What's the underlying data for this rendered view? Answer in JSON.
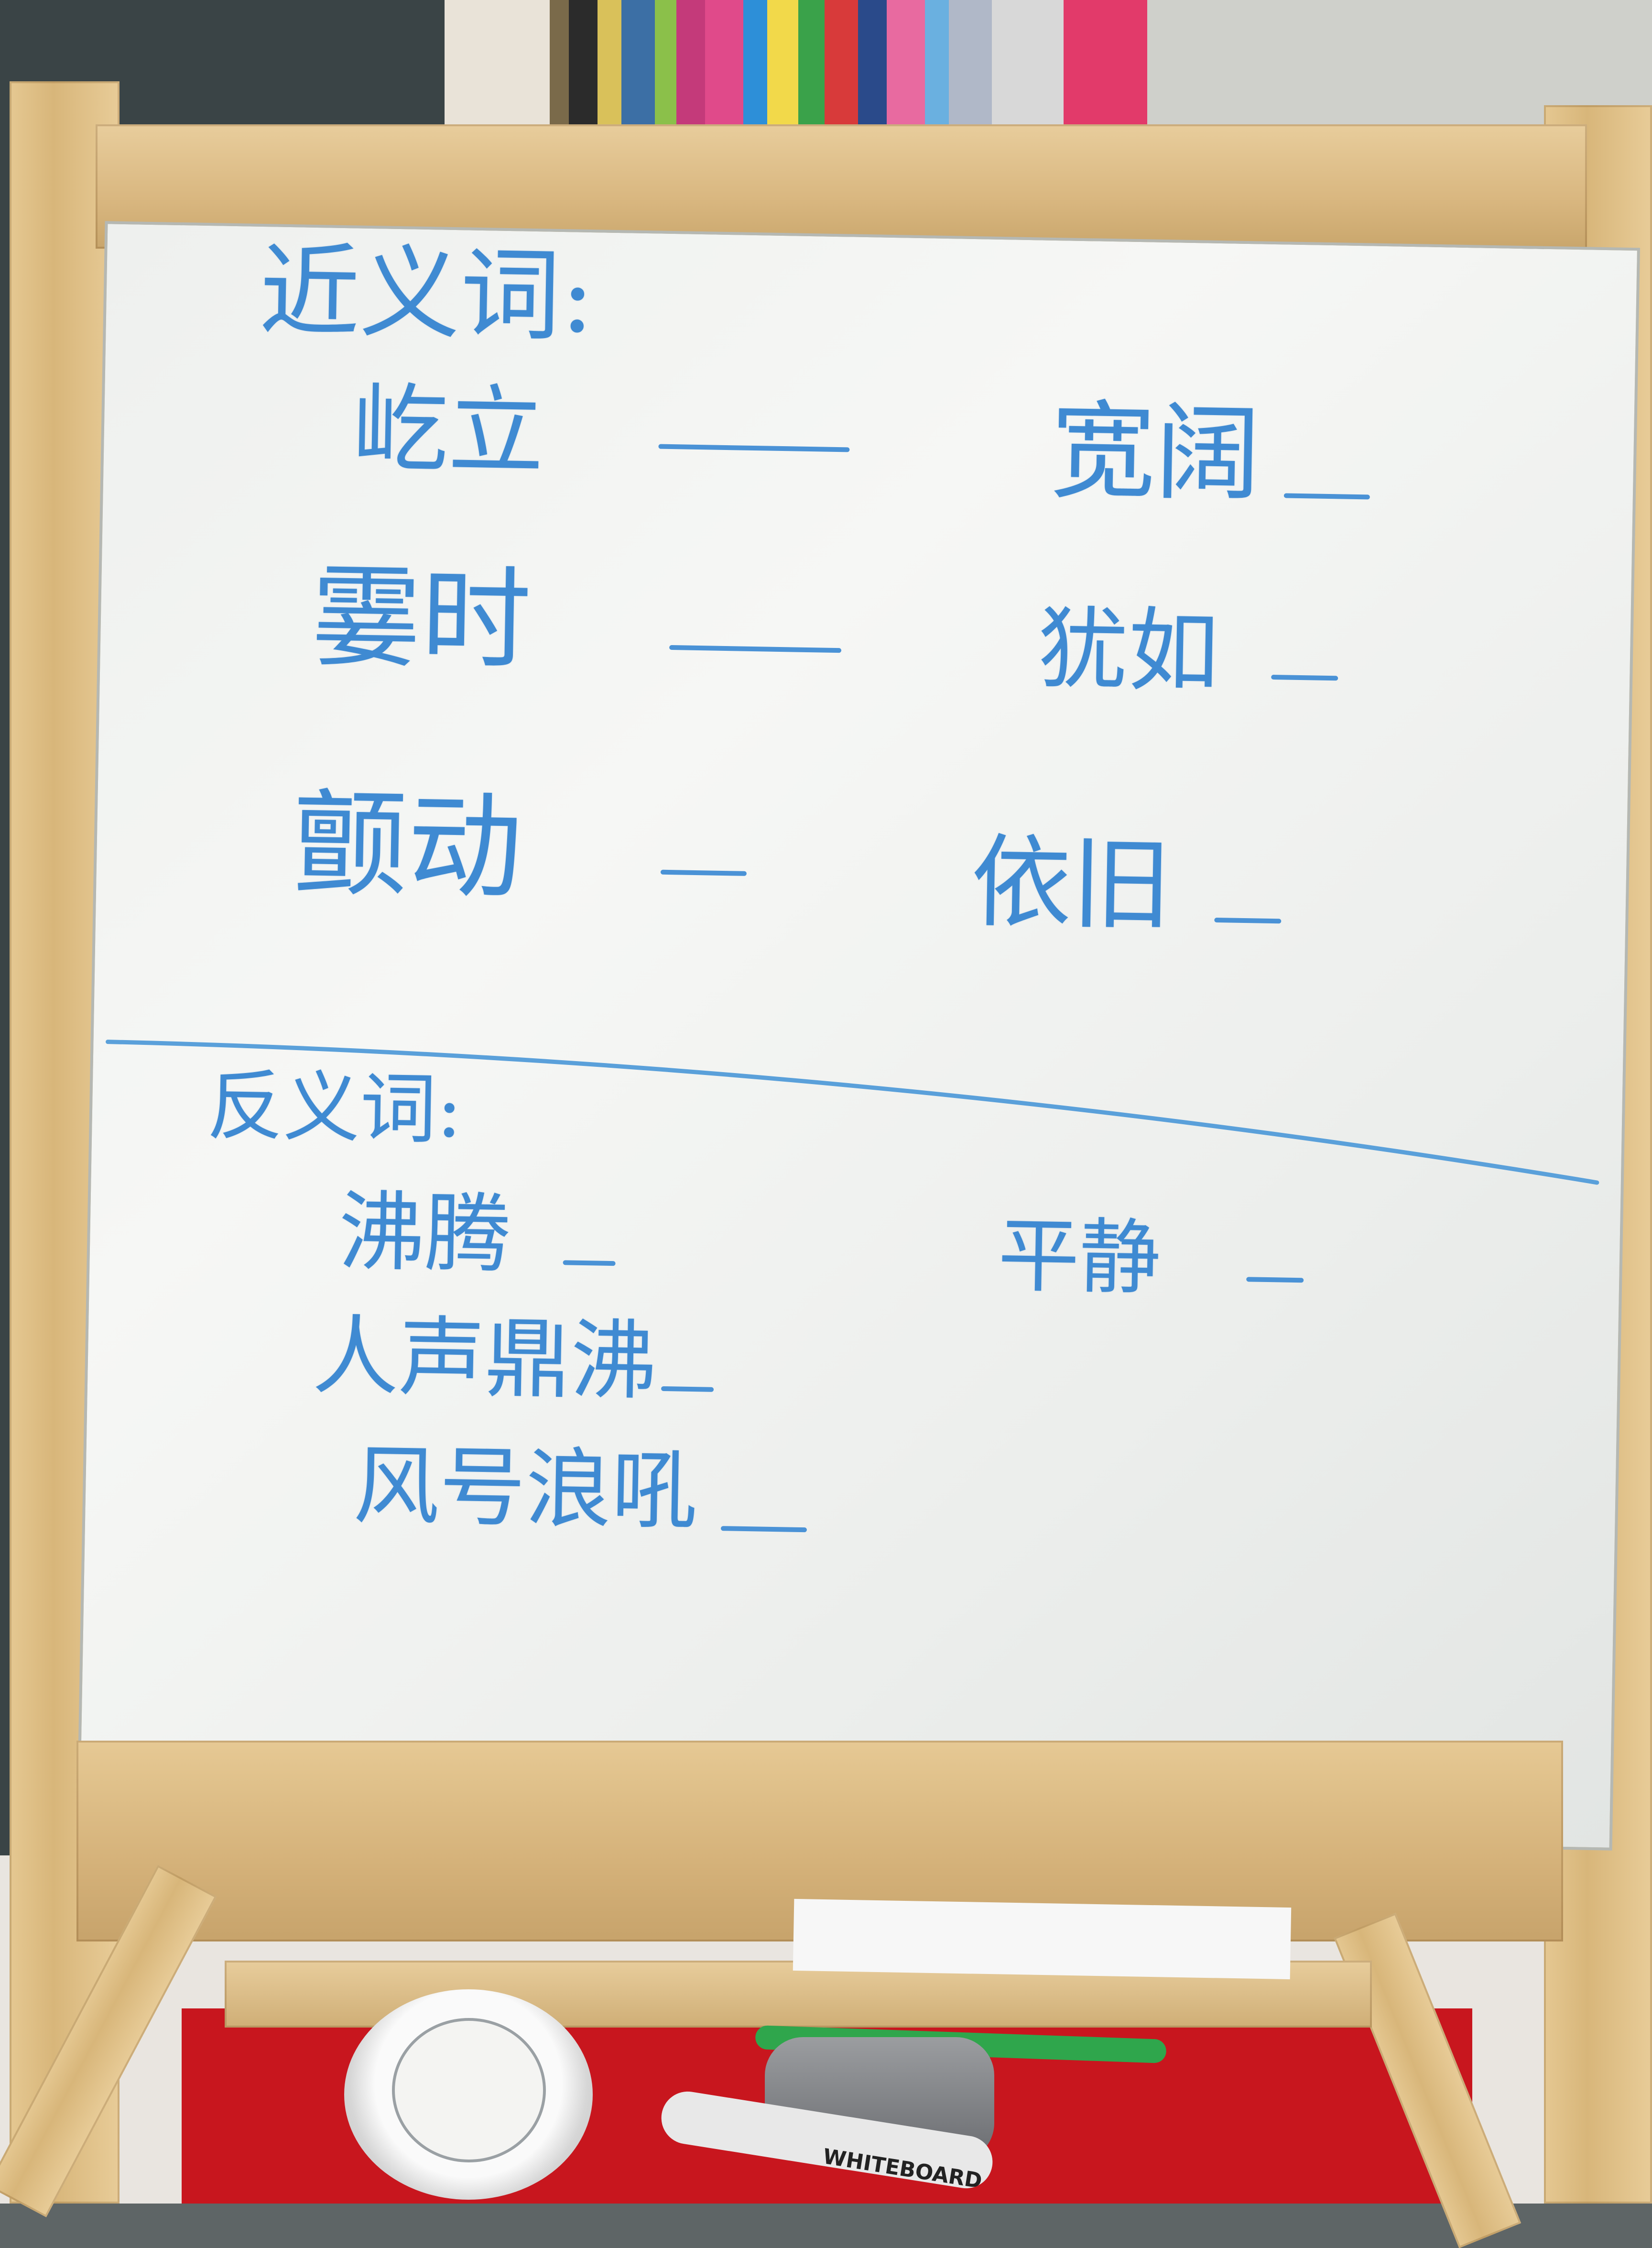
{
  "whiteboard": {
    "synonyms_heading": "近义词:",
    "synonym_words": [
      "屹立",
      "宽阔",
      "霎时",
      "犹如",
      "颤动",
      "依旧"
    ],
    "antonyms_heading": "反义词:",
    "antonym_words": [
      "沸腾",
      "平静",
      "人声鼎沸",
      "风号浪吼"
    ]
  },
  "tray": {
    "marker_label": "WHITEBOARD"
  },
  "colors": {
    "ink": "#3f8ad2",
    "tray": "#c8161e",
    "wood": "#d8b67a"
  }
}
